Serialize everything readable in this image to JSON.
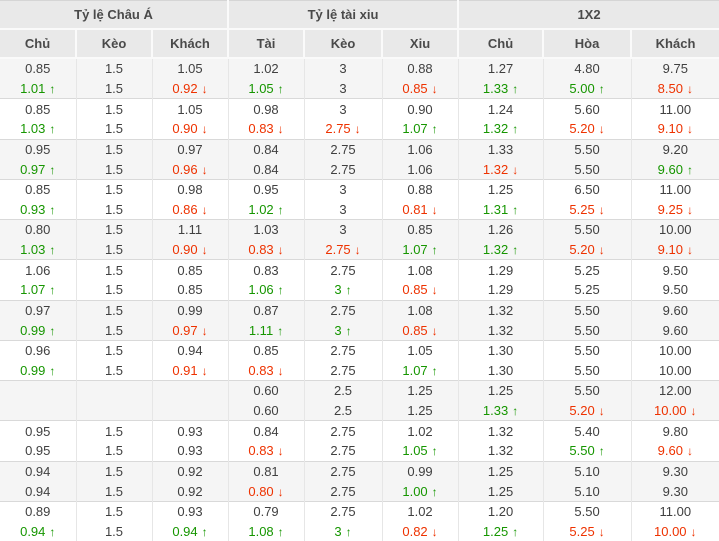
{
  "table": {
    "groups": [
      {
        "label": "Tỷ lệ Châu Á",
        "span": 3
      },
      {
        "label": "Tỷ lệ tài xiu",
        "span": 3
      },
      {
        "label": "1X2",
        "span": 3
      }
    ],
    "columns": [
      "Chủ",
      "Kèo",
      "Khách",
      "Tài",
      "Kèo",
      "Xiu",
      "Chủ",
      "Hòa",
      "Khách"
    ],
    "arrows": {
      "up": "↑",
      "down": "↓"
    },
    "colors": {
      "up_color": "#169600",
      "down_color": "#ee3200",
      "text_color": "#404040",
      "header_bg": "#e9e9e9",
      "row_alt_bg": "#f5f5f5"
    },
    "rows": [
      [
        {
          "v": "0.85"
        },
        {
          "v": "1.5"
        },
        {
          "v": "1.05"
        },
        {
          "v": "1.02"
        },
        {
          "v": "3"
        },
        {
          "v": "0.88"
        },
        {
          "v": "1.27"
        },
        {
          "v": "4.80"
        },
        {
          "v": "9.75"
        }
      ],
      [
        {
          "v": "1.01",
          "t": "up"
        },
        {
          "v": "1.5"
        },
        {
          "v": "0.92",
          "t": "down"
        },
        {
          "v": "1.05",
          "t": "up"
        },
        {
          "v": "3"
        },
        {
          "v": "0.85",
          "t": "down"
        },
        {
          "v": "1.33",
          "t": "up"
        },
        {
          "v": "5.00",
          "t": "up"
        },
        {
          "v": "8.50",
          "t": "down"
        }
      ],
      [
        {
          "v": "0.85"
        },
        {
          "v": "1.5"
        },
        {
          "v": "1.05"
        },
        {
          "v": "0.98"
        },
        {
          "v": "3"
        },
        {
          "v": "0.90"
        },
        {
          "v": "1.24"
        },
        {
          "v": "5.60"
        },
        {
          "v": "11.00"
        }
      ],
      [
        {
          "v": "1.03",
          "t": "up"
        },
        {
          "v": "1.5"
        },
        {
          "v": "0.90",
          "t": "down"
        },
        {
          "v": "0.83",
          "t": "down"
        },
        {
          "v": "2.75",
          "t": "down"
        },
        {
          "v": "1.07",
          "t": "up"
        },
        {
          "v": "1.32",
          "t": "up"
        },
        {
          "v": "5.20",
          "t": "down"
        },
        {
          "v": "9.10",
          "t": "down"
        }
      ],
      [
        {
          "v": "0.95"
        },
        {
          "v": "1.5"
        },
        {
          "v": "0.97"
        },
        {
          "v": "0.84"
        },
        {
          "v": "2.75"
        },
        {
          "v": "1.06"
        },
        {
          "v": "1.33"
        },
        {
          "v": "5.50"
        },
        {
          "v": "9.20"
        }
      ],
      [
        {
          "v": "0.97",
          "t": "up"
        },
        {
          "v": "1.5"
        },
        {
          "v": "0.96",
          "t": "down"
        },
        {
          "v": "0.84"
        },
        {
          "v": "2.75"
        },
        {
          "v": "1.06"
        },
        {
          "v": "1.32",
          "t": "down"
        },
        {
          "v": "5.50"
        },
        {
          "v": "9.60",
          "t": "up"
        }
      ],
      [
        {
          "v": "0.85"
        },
        {
          "v": "1.5"
        },
        {
          "v": "0.98"
        },
        {
          "v": "0.95"
        },
        {
          "v": "3"
        },
        {
          "v": "0.88"
        },
        {
          "v": "1.25"
        },
        {
          "v": "6.50"
        },
        {
          "v": "11.00"
        }
      ],
      [
        {
          "v": "0.93",
          "t": "up"
        },
        {
          "v": "1.5"
        },
        {
          "v": "0.86",
          "t": "down"
        },
        {
          "v": "1.02",
          "t": "up"
        },
        {
          "v": "3"
        },
        {
          "v": "0.81",
          "t": "down"
        },
        {
          "v": "1.31",
          "t": "up"
        },
        {
          "v": "5.25",
          "t": "down"
        },
        {
          "v": "9.25",
          "t": "down"
        }
      ],
      [
        {
          "v": "0.80"
        },
        {
          "v": "1.5"
        },
        {
          "v": "1.11"
        },
        {
          "v": "1.03"
        },
        {
          "v": "3"
        },
        {
          "v": "0.85"
        },
        {
          "v": "1.26"
        },
        {
          "v": "5.50"
        },
        {
          "v": "10.00"
        }
      ],
      [
        {
          "v": "1.03",
          "t": "up"
        },
        {
          "v": "1.5"
        },
        {
          "v": "0.90",
          "t": "down"
        },
        {
          "v": "0.83",
          "t": "down"
        },
        {
          "v": "2.75",
          "t": "down"
        },
        {
          "v": "1.07",
          "t": "up"
        },
        {
          "v": "1.32",
          "t": "up"
        },
        {
          "v": "5.20",
          "t": "down"
        },
        {
          "v": "9.10",
          "t": "down"
        }
      ],
      [
        {
          "v": "1.06"
        },
        {
          "v": "1.5"
        },
        {
          "v": "0.85"
        },
        {
          "v": "0.83"
        },
        {
          "v": "2.75"
        },
        {
          "v": "1.08"
        },
        {
          "v": "1.29"
        },
        {
          "v": "5.25"
        },
        {
          "v": "9.50"
        }
      ],
      [
        {
          "v": "1.07",
          "t": "up"
        },
        {
          "v": "1.5"
        },
        {
          "v": "0.85"
        },
        {
          "v": "1.06",
          "t": "up"
        },
        {
          "v": "3",
          "t": "up"
        },
        {
          "v": "0.85",
          "t": "down"
        },
        {
          "v": "1.29"
        },
        {
          "v": "5.25"
        },
        {
          "v": "9.50"
        }
      ],
      [
        {
          "v": "0.97"
        },
        {
          "v": "1.5"
        },
        {
          "v": "0.99"
        },
        {
          "v": "0.87"
        },
        {
          "v": "2.75"
        },
        {
          "v": "1.08"
        },
        {
          "v": "1.32"
        },
        {
          "v": "5.50"
        },
        {
          "v": "9.60"
        }
      ],
      [
        {
          "v": "0.99",
          "t": "up"
        },
        {
          "v": "1.5"
        },
        {
          "v": "0.97",
          "t": "down"
        },
        {
          "v": "1.11",
          "t": "up"
        },
        {
          "v": "3",
          "t": "up"
        },
        {
          "v": "0.85",
          "t": "down"
        },
        {
          "v": "1.32"
        },
        {
          "v": "5.50"
        },
        {
          "v": "9.60"
        }
      ],
      [
        {
          "v": "0.96"
        },
        {
          "v": "1.5"
        },
        {
          "v": "0.94"
        },
        {
          "v": "0.85"
        },
        {
          "v": "2.75"
        },
        {
          "v": "1.05"
        },
        {
          "v": "1.30"
        },
        {
          "v": "5.50"
        },
        {
          "v": "10.00"
        }
      ],
      [
        {
          "v": "0.99",
          "t": "up"
        },
        {
          "v": "1.5"
        },
        {
          "v": "0.91",
          "t": "down"
        },
        {
          "v": "0.83",
          "t": "down"
        },
        {
          "v": "2.75"
        },
        {
          "v": "1.07",
          "t": "up"
        },
        {
          "v": "1.30"
        },
        {
          "v": "5.50"
        },
        {
          "v": "10.00"
        }
      ],
      [
        {
          "v": ""
        },
        {
          "v": ""
        },
        {
          "v": ""
        },
        {
          "v": "0.60"
        },
        {
          "v": "2.5"
        },
        {
          "v": "1.25"
        },
        {
          "v": "1.25"
        },
        {
          "v": "5.50"
        },
        {
          "v": "12.00"
        }
      ],
      [
        {
          "v": ""
        },
        {
          "v": ""
        },
        {
          "v": ""
        },
        {
          "v": "0.60"
        },
        {
          "v": "2.5"
        },
        {
          "v": "1.25"
        },
        {
          "v": "1.33",
          "t": "up"
        },
        {
          "v": "5.20",
          "t": "down"
        },
        {
          "v": "10.00",
          "t": "down"
        }
      ],
      [
        {
          "v": "0.95"
        },
        {
          "v": "1.5"
        },
        {
          "v": "0.93"
        },
        {
          "v": "0.84"
        },
        {
          "v": "2.75"
        },
        {
          "v": "1.02"
        },
        {
          "v": "1.32"
        },
        {
          "v": "5.40"
        },
        {
          "v": "9.80"
        }
      ],
      [
        {
          "v": "0.95"
        },
        {
          "v": "1.5"
        },
        {
          "v": "0.93"
        },
        {
          "v": "0.83",
          "t": "down"
        },
        {
          "v": "2.75"
        },
        {
          "v": "1.05",
          "t": "up"
        },
        {
          "v": "1.32"
        },
        {
          "v": "5.50",
          "t": "up"
        },
        {
          "v": "9.60",
          "t": "down"
        }
      ],
      [
        {
          "v": "0.94"
        },
        {
          "v": "1.5"
        },
        {
          "v": "0.92"
        },
        {
          "v": "0.81"
        },
        {
          "v": "2.75"
        },
        {
          "v": "0.99"
        },
        {
          "v": "1.25"
        },
        {
          "v": "5.10"
        },
        {
          "v": "9.30"
        }
      ],
      [
        {
          "v": "0.94"
        },
        {
          "v": "1.5"
        },
        {
          "v": "0.92"
        },
        {
          "v": "0.80",
          "t": "down"
        },
        {
          "v": "2.75"
        },
        {
          "v": "1.00",
          "t": "up"
        },
        {
          "v": "1.25"
        },
        {
          "v": "5.10"
        },
        {
          "v": "9.30"
        }
      ],
      [
        {
          "v": "0.89"
        },
        {
          "v": "1.5"
        },
        {
          "v": "0.93"
        },
        {
          "v": "0.79"
        },
        {
          "v": "2.75"
        },
        {
          "v": "1.02"
        },
        {
          "v": "1.20"
        },
        {
          "v": "5.50"
        },
        {
          "v": "11.00"
        }
      ],
      [
        {
          "v": "0.94",
          "t": "up"
        },
        {
          "v": "1.5"
        },
        {
          "v": "0.94",
          "t": "up"
        },
        {
          "v": "1.08",
          "t": "up"
        },
        {
          "v": "3",
          "t": "up"
        },
        {
          "v": "0.82",
          "t": "down"
        },
        {
          "v": "1.25",
          "t": "up"
        },
        {
          "v": "5.25",
          "t": "down"
        },
        {
          "v": "10.00",
          "t": "down"
        }
      ]
    ]
  }
}
